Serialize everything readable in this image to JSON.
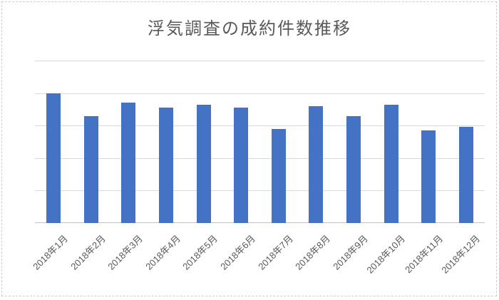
{
  "chart_data": {
    "type": "bar",
    "title": "浮気調査の成約件数推移",
    "categories": [
      "2018年1月",
      "2018年2月",
      "2018年3月",
      "2018年4月",
      "2018年5月",
      "2018年6月",
      "2018年7月",
      "2018年8月",
      "2018年9月",
      "2018年10月",
      "2018年11月",
      "2018年12月"
    ],
    "values": [
      80,
      66,
      74,
      71,
      73,
      71,
      58,
      72,
      66,
      73,
      57,
      59
    ],
    "xlabel": "",
    "ylabel": "",
    "ylim": [
      0,
      100
    ],
    "grid_step": 20,
    "grid": true,
    "y_axis_labels_visible": false,
    "legend": "none",
    "x_label_rotation_deg": 45,
    "colors": {
      "bar": "#4472C4",
      "gridline": "#D9D9D9",
      "axis_line": "#C2C2C2",
      "title": "#595959",
      "axis_label": "#595959",
      "frame_border": "#CFCDCB",
      "background": "#FFFFFF"
    }
  }
}
